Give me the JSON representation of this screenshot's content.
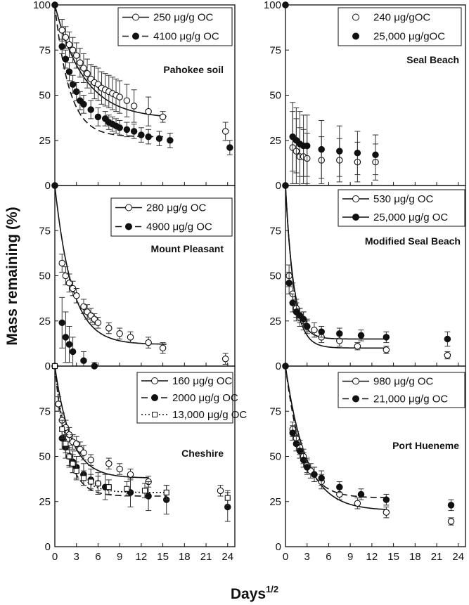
{
  "figure": {
    "ylabel": "Mass remaining (%)",
    "xlabel_base": "Days",
    "xlabel_sup": "1/2"
  },
  "chart_data": [
    {
      "type": "scatter",
      "panel": "left-top",
      "site": "Pahokee soil",
      "xlim": [
        0,
        25
      ],
      "ylim": [
        0,
        100
      ],
      "xticks": [
        0,
        3,
        6,
        9,
        12,
        15,
        18,
        21,
        24
      ],
      "yticks": [
        0,
        25,
        50,
        75,
        100
      ],
      "legend_position": "top-right",
      "series": [
        {
          "name": "250 μg/g OC",
          "marker": "open",
          "line": "solid",
          "x": [
            0,
            1,
            1.5,
            2,
            2.5,
            3,
            3.5,
            4,
            4.5,
            5,
            5.5,
            6,
            6.5,
            7,
            7.5,
            8,
            8.5,
            9,
            10,
            11,
            13,
            15,
            23.7
          ],
          "y": [
            100,
            86,
            82,
            78,
            75,
            72,
            68,
            65,
            62,
            59,
            57,
            56,
            54,
            53,
            52,
            51,
            50,
            49,
            47,
            44,
            41,
            38,
            30
          ],
          "err": [
            0,
            6,
            6,
            7,
            7,
            7,
            8,
            8,
            8,
            8,
            9,
            9,
            9,
            9,
            9,
            9,
            9,
            9,
            9,
            9,
            8,
            3,
            5
          ],
          "fit": {
            "a": 63,
            "k": 0.25,
            "c": 37,
            "x_end": 15.5
          }
        },
        {
          "name": "4100 μg/g OC",
          "marker": "filled",
          "line": "dashed",
          "x": [
            0,
            1,
            1.5,
            2,
            2.5,
            3,
            3.5,
            4,
            5,
            6,
            7,
            7.5,
            8,
            8.5,
            9,
            10,
            11,
            12,
            13,
            14.5,
            16,
            24.3
          ],
          "y": [
            100,
            77,
            70,
            63,
            56,
            52,
            47,
            45,
            42,
            38,
            37,
            35,
            34,
            33,
            32,
            31,
            30,
            28,
            27,
            26,
            25,
            21
          ],
          "err": [
            0,
            4,
            5,
            5,
            5,
            5,
            5,
            5,
            5,
            5,
            4,
            4,
            4,
            4,
            4,
            4,
            4,
            4,
            4,
            4,
            4,
            4
          ],
          "fit": {
            "a": 73,
            "k": 0.5,
            "c": 27,
            "x_end": 15.5
          }
        }
      ]
    },
    {
      "type": "scatter",
      "panel": "right-top",
      "site": "Seal Beach",
      "xlim": [
        0,
        25
      ],
      "ylim": [
        0,
        100
      ],
      "xticks": [
        0,
        3,
        6,
        9,
        12,
        15,
        18,
        21,
        24
      ],
      "yticks": [
        0,
        25,
        50,
        75,
        100
      ],
      "legend_position": "top-right",
      "series": [
        {
          "name": "240 μg/gOC",
          "marker": "open",
          "line": "none",
          "x": [
            0,
            1,
            1.5,
            2,
            2.5,
            3,
            5,
            7.5,
            10,
            12.5
          ],
          "y": [
            100,
            21,
            19,
            16,
            16,
            15,
            14,
            14,
            13,
            13
          ],
          "err": [
            0,
            20,
            18,
            16,
            15,
            14,
            13,
            12,
            11,
            10
          ],
          "fit": null
        },
        {
          "name": "25,000 μg/gOC",
          "marker": "filled",
          "line": "none",
          "x": [
            0,
            1,
            1.5,
            2,
            2.5,
            3,
            5,
            7.5,
            10,
            12.5
          ],
          "y": [
            100,
            27,
            25,
            23,
            22,
            22,
            20,
            19,
            18,
            17
          ],
          "err": [
            0,
            19,
            18,
            18,
            17,
            17,
            16,
            14,
            12,
            11
          ],
          "fit": null
        }
      ]
    },
    {
      "type": "scatter",
      "panel": "left-middle",
      "site": "Mount Pleasant",
      "xlim": [
        0,
        25
      ],
      "ylim": [
        0,
        100
      ],
      "xticks": [
        0,
        3,
        6,
        9,
        12,
        15,
        18,
        21,
        24
      ],
      "yticks": [
        0,
        25,
        50,
        75
      ],
      "legend_position": "top-right",
      "series": [
        {
          "name": "280 μg/g OC",
          "marker": "open",
          "line": "solid",
          "x": [
            0,
            1,
            1.5,
            2,
            2.5,
            3,
            4,
            4.5,
            5,
            5.5,
            6,
            7.5,
            9,
            10.5,
            13,
            15,
            23.7
          ],
          "y": [
            100,
            57,
            50,
            46,
            43,
            39,
            33,
            30,
            28,
            26,
            24,
            21,
            18,
            16,
            13,
            10,
            4
          ],
          "err": [
            0,
            5,
            5,
            5,
            4,
            4,
            4,
            4,
            4,
            3,
            3,
            3,
            3,
            3,
            3,
            3,
            3
          ],
          "fit": {
            "a": 88,
            "k": 0.42,
            "c": 12,
            "x_end": 15.5
          }
        },
        {
          "name": "4900 μg/g OC",
          "marker": "filled",
          "line": "dashed",
          "x": [
            0,
            1,
            1.5,
            2,
            2.5,
            4,
            5.5
          ],
          "y": [
            100,
            24,
            16,
            12,
            8,
            3,
            0
          ],
          "err": [
            0,
            14,
            14,
            10,
            8,
            5,
            2
          ],
          "fit": null
        }
      ]
    },
    {
      "type": "scatter",
      "panel": "right-middle",
      "site": "Modified Seal Beach",
      "xlim": [
        0,
        25
      ],
      "ylim": [
        0,
        100
      ],
      "xticks": [
        0,
        3,
        6,
        9,
        12,
        15,
        18,
        21,
        24
      ],
      "yticks": [
        0,
        25,
        50,
        75
      ],
      "legend_position": "top-right",
      "series": [
        {
          "name": "530 μg/g OC",
          "marker": "open",
          "line": "solid",
          "x": [
            0,
            0.5,
            1,
            1.5,
            2,
            2.5,
            3,
            4,
            5,
            7.5,
            10,
            14,
            22.5
          ],
          "y": [
            100,
            50,
            40,
            32,
            27,
            25,
            22,
            20,
            16,
            14,
            11,
            9,
            6
          ],
          "err": [
            0,
            6,
            6,
            5,
            5,
            5,
            4,
            4,
            3,
            3,
            2,
            2,
            2
          ],
          "fit": {
            "a": 90,
            "k": 0.85,
            "c": 10,
            "x_end": 14
          }
        },
        {
          "name": "25,000 μg/g OC",
          "marker": "filled",
          "line": "solid",
          "x": [
            0,
            0.5,
            1,
            1.5,
            2,
            2.5,
            3,
            5,
            7.5,
            10.5,
            14,
            22.5
          ],
          "y": [
            100,
            46,
            35,
            30,
            28,
            26,
            22,
            19,
            18,
            17,
            16,
            15
          ],
          "err": [
            0,
            6,
            5,
            5,
            4,
            4,
            3,
            3,
            3,
            3,
            3,
            4
          ],
          "fit": {
            "a": 85,
            "k": 0.9,
            "c": 15,
            "x_end": 14
          }
        }
      ]
    },
    {
      "type": "scatter",
      "panel": "left-bottom",
      "site": "Cheshire",
      "xlim": [
        0,
        25
      ],
      "ylim": [
        0,
        100
      ],
      "xticks": [
        0,
        3,
        6,
        9,
        12,
        15,
        18,
        21,
        24
      ],
      "yticks": [
        0,
        25,
        50,
        75
      ],
      "legend_position": "top-right",
      "series": [
        {
          "name": "160 μg/g OC",
          "marker": "open",
          "line": "solid",
          "x": [
            0,
            0.5,
            1,
            1.5,
            2,
            2.5,
            3,
            3.5,
            4,
            5,
            7.5,
            9,
            10.5,
            13,
            23
          ],
          "y": [
            100,
            79,
            70,
            66,
            62,
            58,
            57,
            54,
            52,
            48,
            46,
            43,
            40,
            36,
            31
          ],
          "err": [
            0,
            4,
            4,
            4,
            4,
            4,
            4,
            4,
            4,
            3,
            3,
            3,
            3,
            3,
            3
          ],
          "fit": {
            "a": 62,
            "k": 0.45,
            "c": 38,
            "x_end": 13
          }
        },
        {
          "name": "2000 μg/g OC",
          "marker": "filled",
          "line": "dashed",
          "x": [
            0,
            1,
            1.5,
            2,
            2.5,
            3,
            4,
            5,
            6,
            7,
            10.5,
            13,
            15.5,
            24
          ],
          "y": [
            100,
            60,
            55,
            50,
            47,
            44,
            40,
            37,
            35,
            33,
            30,
            28,
            26,
            22
          ],
          "err": [
            0,
            6,
            6,
            6,
            6,
            6,
            6,
            6,
            6,
            7,
            8,
            8,
            8,
            8
          ],
          "fit": {
            "a": 72,
            "k": 0.6,
            "c": 28,
            "x_end": 15.5
          }
        },
        {
          "name": "13,000 μg/g OC",
          "marker": "square",
          "line": "dotted",
          "x": [
            0,
            1,
            1.5,
            2,
            2.5,
            3,
            4,
            5,
            6,
            7.5,
            10,
            12.5,
            15.5,
            24
          ],
          "y": [
            100,
            65,
            57,
            50,
            46,
            42,
            38,
            36,
            35,
            33,
            32,
            31,
            30,
            27
          ],
          "err": [
            0,
            5,
            5,
            5,
            5,
            5,
            4,
            4,
            4,
            4,
            4,
            4,
            4,
            4
          ],
          "fit": {
            "a": 70,
            "k": 0.55,
            "c": 30,
            "x_end": 15.5
          }
        }
      ]
    },
    {
      "type": "scatter",
      "panel": "right-bottom",
      "site": "Port Hueneme",
      "xlim": [
        0,
        25
      ],
      "ylim": [
        0,
        100
      ],
      "xticks": [
        0,
        3,
        6,
        9,
        12,
        15,
        18,
        21,
        24
      ],
      "yticks": [
        0,
        25,
        50,
        75
      ],
      "legend_position": "top-right",
      "series": [
        {
          "name": "980 μg/g OC",
          "marker": "open",
          "line": "solid",
          "x": [
            0,
            1,
            1.5,
            2,
            2.5,
            3,
            3.5,
            4,
            5,
            7.5,
            10,
            14,
            23
          ],
          "y": [
            100,
            65,
            60,
            55,
            50,
            45,
            42,
            40,
            36,
            29,
            24,
            19,
            14
          ],
          "err": [
            0,
            4,
            4,
            4,
            4,
            4,
            4,
            4,
            4,
            3,
            3,
            3,
            2
          ],
          "fit": {
            "a": 80,
            "k": 0.35,
            "c": 20,
            "x_end": 14
          }
        },
        {
          "name": "21,000 μg/g OC",
          "marker": "filled",
          "line": "dashed",
          "x": [
            0,
            1,
            1.5,
            2,
            2.5,
            3,
            4,
            5,
            7.5,
            10.5,
            14,
            23
          ],
          "y": [
            100,
            63,
            57,
            53,
            48,
            44,
            40,
            38,
            33,
            29,
            26,
            23
          ],
          "err": [
            0,
            4,
            4,
            4,
            4,
            4,
            4,
            4,
            3,
            3,
            3,
            3
          ],
          "fit": {
            "a": 73,
            "k": 0.45,
            "c": 27,
            "x_end": 14
          }
        }
      ]
    }
  ]
}
